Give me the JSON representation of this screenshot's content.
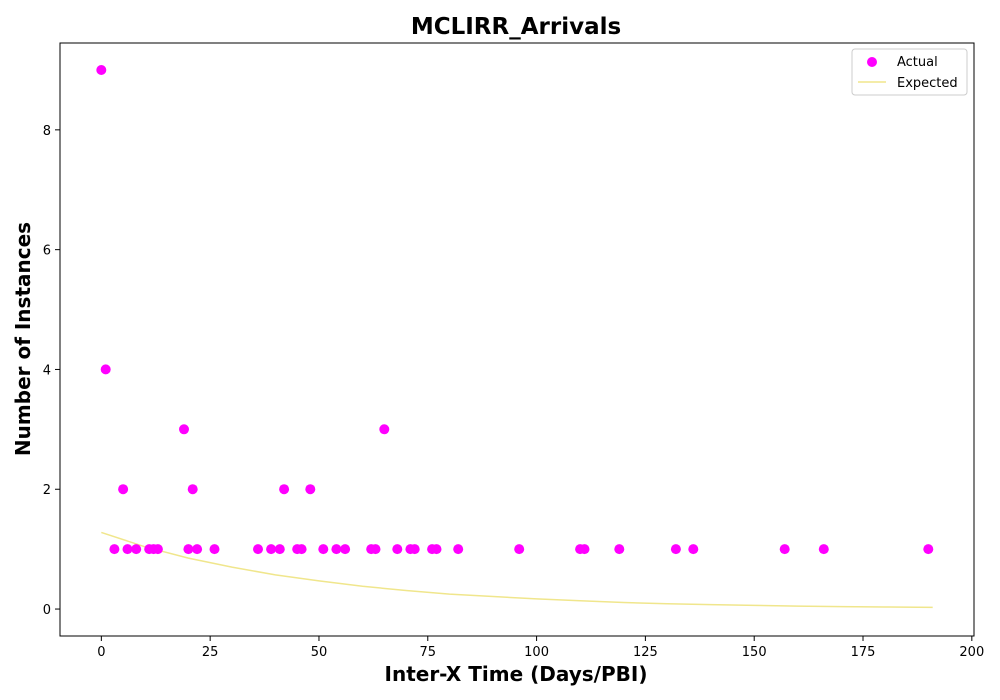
{
  "chart_data": {
    "type": "scatter",
    "title": "MCLIRR_Arrivals",
    "xlabel": "Inter-X Time (Days/PBI)",
    "ylabel": "Number of Instances",
    "xlim": [
      -9.5,
      200.5
    ],
    "ylim": [
      -0.45,
      9.45
    ],
    "xticks": [
      0,
      25,
      50,
      75,
      100,
      125,
      150,
      175,
      200
    ],
    "yticks": [
      0,
      2,
      4,
      6,
      8
    ],
    "grid": false,
    "legend_position": "top-right",
    "series": [
      {
        "name": "Actual",
        "kind": "scatter",
        "color": "#ff00ff",
        "points": [
          [
            0,
            9
          ],
          [
            1,
            4
          ],
          [
            3,
            1
          ],
          [
            5,
            2
          ],
          [
            6,
            1
          ],
          [
            8,
            1
          ],
          [
            11,
            1
          ],
          [
            12,
            1
          ],
          [
            13,
            1
          ],
          [
            19,
            3
          ],
          [
            20,
            1
          ],
          [
            21,
            2
          ],
          [
            22,
            1
          ],
          [
            26,
            1
          ],
          [
            36,
            1
          ],
          [
            39,
            1
          ],
          [
            41,
            1
          ],
          [
            42,
            2
          ],
          [
            45,
            1
          ],
          [
            46,
            1
          ],
          [
            48,
            2
          ],
          [
            51,
            1
          ],
          [
            54,
            1
          ],
          [
            56,
            1
          ],
          [
            62,
            1
          ],
          [
            63,
            1
          ],
          [
            65,
            3
          ],
          [
            68,
            1
          ],
          [
            71,
            1
          ],
          [
            72,
            1
          ],
          [
            76,
            1
          ],
          [
            77,
            1
          ],
          [
            82,
            1
          ],
          [
            96,
            1
          ],
          [
            110,
            1
          ],
          [
            111,
            1
          ],
          [
            119,
            1
          ],
          [
            132,
            1
          ],
          [
            136,
            1
          ],
          [
            157,
            1
          ],
          [
            166,
            1
          ],
          [
            190,
            1
          ]
        ]
      },
      {
        "name": "Expected",
        "kind": "line",
        "color": "#f0e68c",
        "points": [
          [
            0,
            1.28
          ],
          [
            10,
            1.04
          ],
          [
            20,
            0.85
          ],
          [
            30,
            0.7
          ],
          [
            40,
            0.57
          ],
          [
            50,
            0.47
          ],
          [
            60,
            0.38
          ],
          [
            70,
            0.31
          ],
          [
            80,
            0.25
          ],
          [
            90,
            0.21
          ],
          [
            100,
            0.17
          ],
          [
            110,
            0.14
          ],
          [
            120,
            0.11
          ],
          [
            130,
            0.09
          ],
          [
            140,
            0.075
          ],
          [
            150,
            0.061
          ],
          [
            160,
            0.05
          ],
          [
            170,
            0.041
          ],
          [
            180,
            0.034
          ],
          [
            191,
            0.027
          ]
        ]
      }
    ]
  }
}
